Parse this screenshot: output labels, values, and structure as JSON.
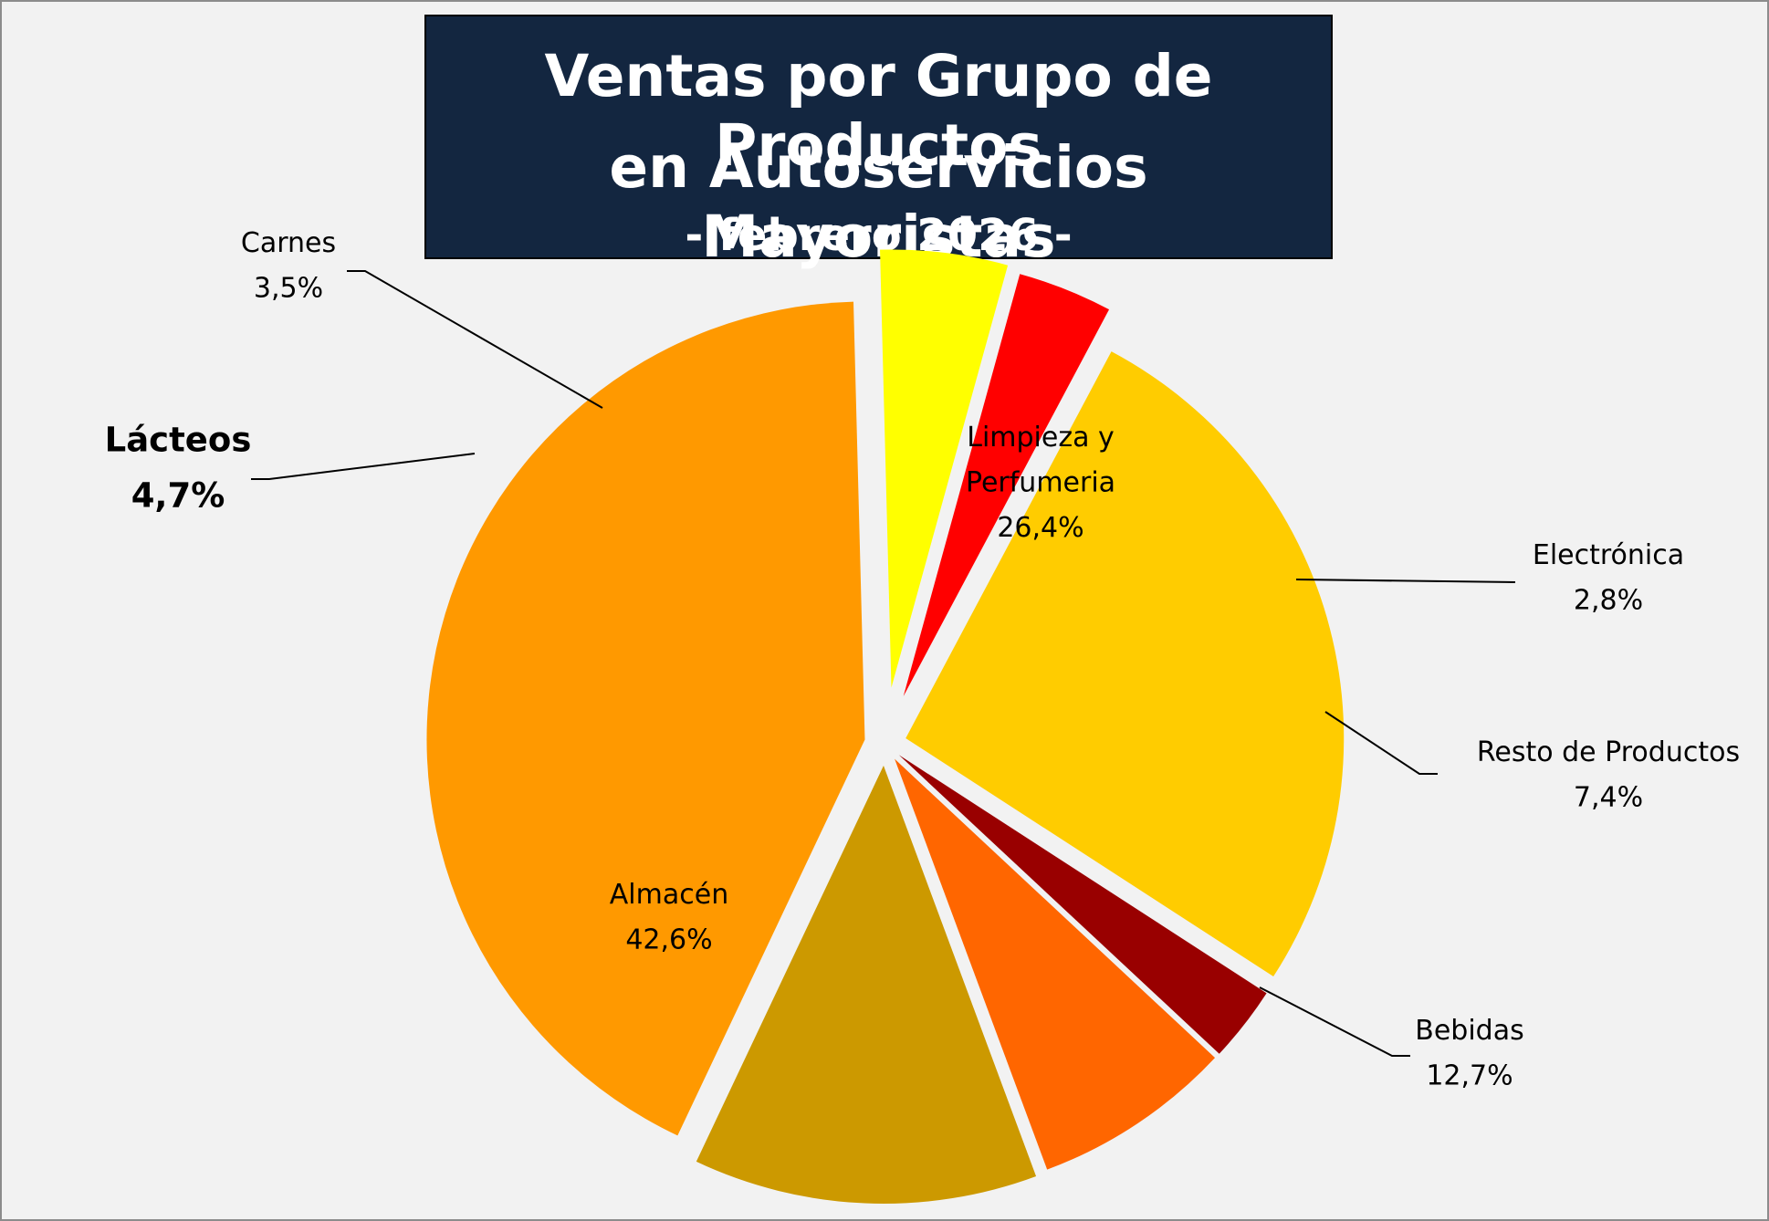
{
  "chart_data": {
    "type": "pie",
    "title": "Ventas por Grupo de Productos",
    "title_line2": "en Autoservicios Mayoristas",
    "subtitle": "- febrero 2026 -",
    "unit": "%",
    "slices": [
      {
        "label": "Limpieza y Perfumeria",
        "label_lines": [
          "Limpieza y",
          "Perfumeria"
        ],
        "value": 26.4,
        "display": "26,4%",
        "color": "#ffcc00"
      },
      {
        "label": "Electrónica",
        "label_lines": [
          "Electrónica"
        ],
        "value": 2.8,
        "display": "2,8%",
        "color": "#990000"
      },
      {
        "label": "Resto de Productos",
        "label_lines": [
          "Resto de Productos"
        ],
        "value": 7.4,
        "display": "7,4%",
        "color": "#ff6600"
      },
      {
        "label": "Bebidas",
        "label_lines": [
          "Bebidas"
        ],
        "value": 12.7,
        "display": "12,7%",
        "color": "#cc9900"
      },
      {
        "label": "Almacén",
        "label_lines": [
          "Almacén"
        ],
        "value": 42.6,
        "display": "42,6%",
        "color": "#ff9900"
      },
      {
        "label": "Lácteos",
        "label_lines": [
          "Lácteos"
        ],
        "value": 4.7,
        "display": "4,7%",
        "color": "#ffff00",
        "emphasis": true
      },
      {
        "label": "Carnes",
        "label_lines": [
          "Carnes"
        ],
        "value": 3.5,
        "display": "3,5%",
        "color": "#ff0000"
      }
    ],
    "legend": "none",
    "start_angle_deg": -62
  }
}
